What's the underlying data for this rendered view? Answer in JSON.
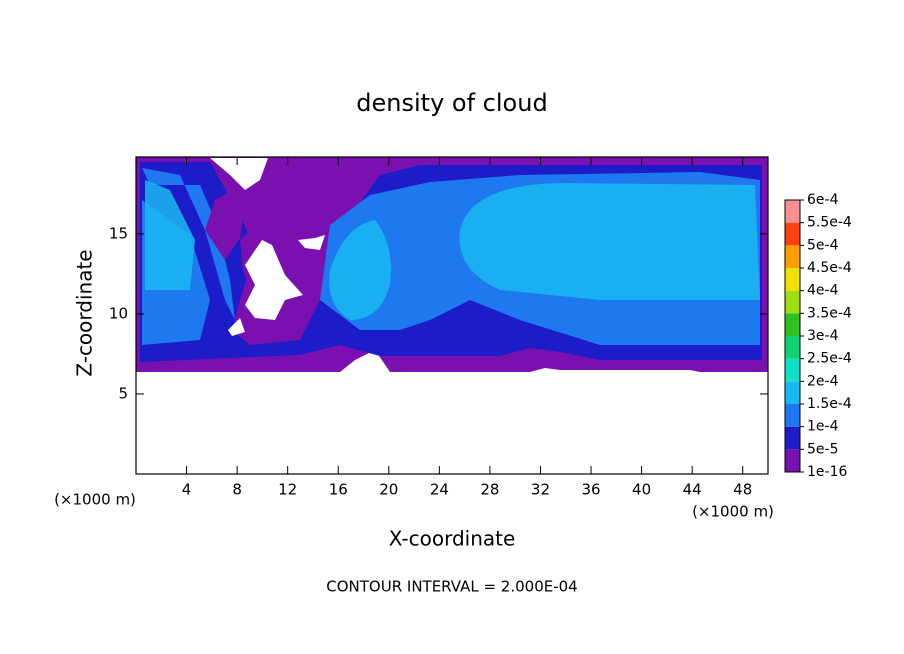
{
  "chart_data": {
    "type": "contour",
    "title": "density of cloud",
    "xlabel": "X-coordinate",
    "ylabel": "Z-coordinate",
    "x_unit_label": "(×1000 m)",
    "y_unit_label": "(×1000 m)",
    "annotation": "CONTOUR INTERVAL = 2.000E-04",
    "xlim": [
      0,
      50
    ],
    "ylim": [
      0,
      19.8
    ],
    "xticks": [
      4,
      8,
      12,
      16,
      20,
      24,
      28,
      32,
      36,
      40,
      44,
      48
    ],
    "yticks": [
      5,
      10,
      15
    ],
    "levels": [
      {
        "value": 1e-16,
        "label": "1e-16"
      },
      {
        "value": 5e-05,
        "label": "5e-5"
      },
      {
        "value": 0.0001,
        "label": "1e-4"
      },
      {
        "value": 0.00015,
        "label": "1.5e-4"
      },
      {
        "value": 0.0002,
        "label": "2e-4"
      },
      {
        "value": 0.00025,
        "label": "2.5e-4"
      },
      {
        "value": 0.0003,
        "label": "3e-4"
      },
      {
        "value": 0.00035,
        "label": "3.5e-4"
      },
      {
        "value": 0.0004,
        "label": "4e-4"
      },
      {
        "value": 0.00045,
        "label": "4.5e-4"
      },
      {
        "value": 0.0005,
        "label": "5e-4"
      },
      {
        "value": 0.00055,
        "label": "5.5e-4"
      },
      {
        "value": 0.0006,
        "label": "6e-4"
      }
    ],
    "colors": [
      "#7a10b0",
      "#1c1cc8",
      "#1e78f0",
      "#1ab8f0",
      "#10e0c8",
      "#10d070",
      "#30c020",
      "#a0e010",
      "#f0e000",
      "#ffa000",
      "#ff4010",
      "#f89090"
    ]
  }
}
